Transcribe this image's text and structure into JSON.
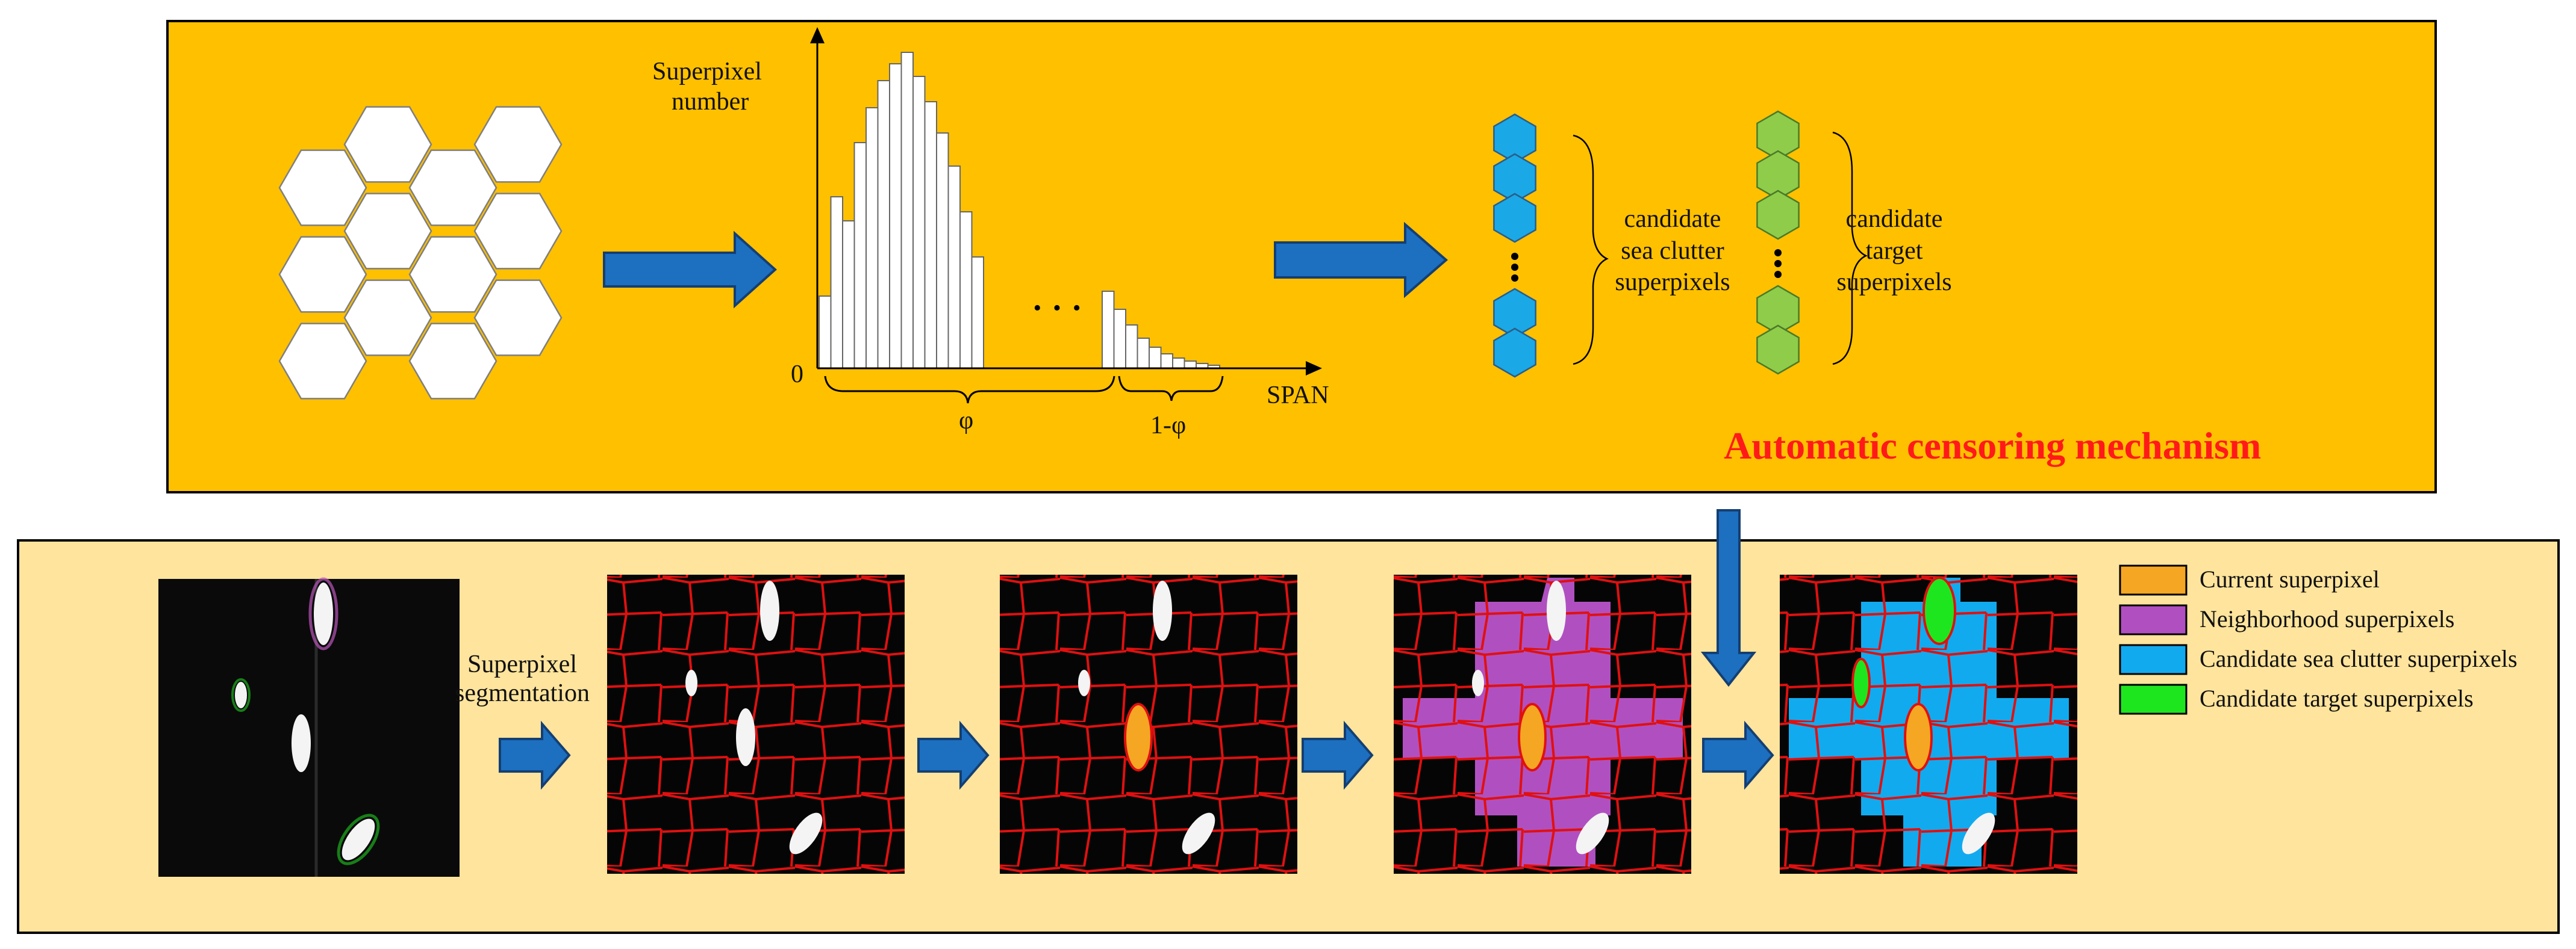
{
  "top_panel": {
    "histogram": {
      "y_label_line1": "Superpixel",
      "y_label_line2": "number",
      "origin_label": "0",
      "x_label": "SPAN",
      "phi_label": "φ",
      "one_minus_phi_label": "1-φ",
      "ellipsis": "· · ·"
    },
    "candidate_sea_clutter": {
      "line1": "candidate",
      "line2": "sea clutter",
      "line3": "superpixels",
      "color": "#1aa9e6"
    },
    "candidate_target": {
      "line1": "candidate",
      "line2": "target",
      "line3": "superpixels",
      "color": "#8fcc4a"
    },
    "mechanism_title": "Automatic censoring mechanism",
    "background_color": "#ffc000"
  },
  "bottom_panel": {
    "background_color": "#fee49c",
    "segmentation_label_line1": "Superpixel",
    "segmentation_label_line2": "segmentation",
    "legend": [
      {
        "label": "Current superpixel",
        "color": "#f5a623"
      },
      {
        "label": "Neighborhood superpixels",
        "color": "#b050c0"
      },
      {
        "label": "Candidate sea clutter superpixels",
        "color": "#12aaee"
      },
      {
        "label": "Candidate target superpixels",
        "color": "#1ee61e"
      }
    ]
  }
}
